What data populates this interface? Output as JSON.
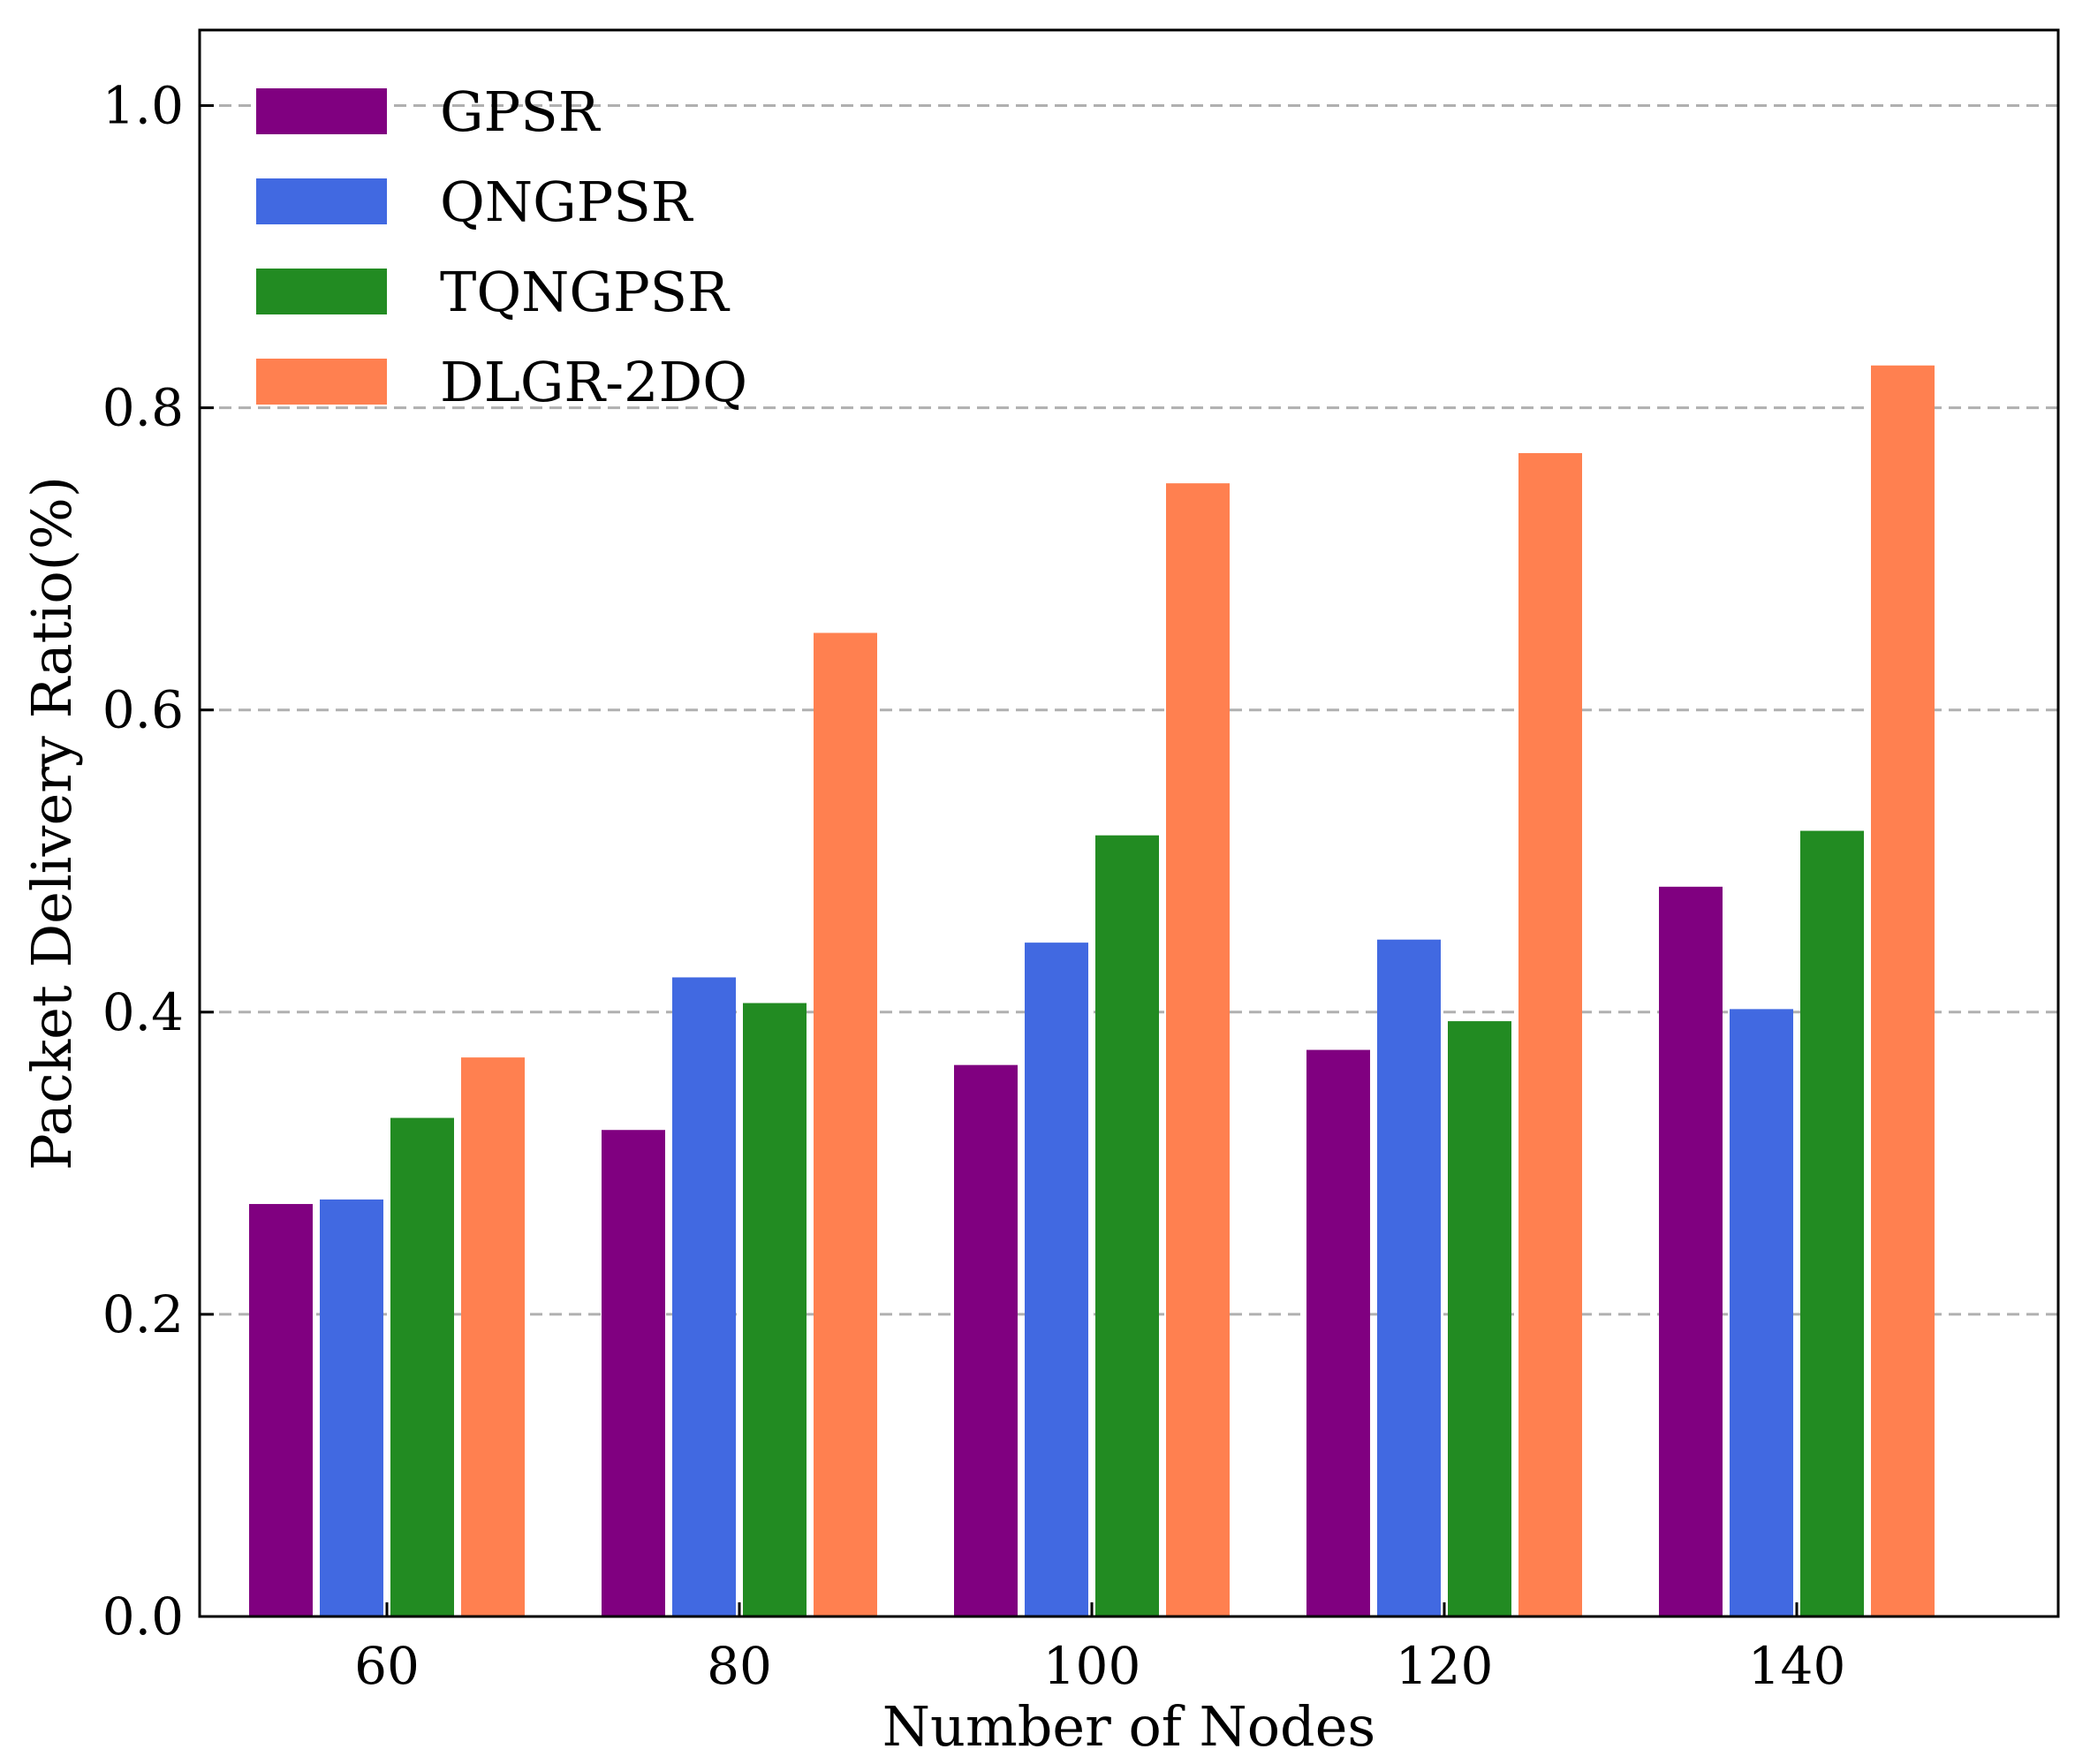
{
  "chart_data": {
    "type": "bar",
    "title": "",
    "xlabel": "Number of Nodes",
    "ylabel": "Packet Delivery Ratio(%)",
    "categories": [
      "60",
      "80",
      "100",
      "120",
      "140"
    ],
    "ylim": [
      0,
      1.05
    ],
    "yticks": [
      "0.0",
      "0.2",
      "0.4",
      "0.6",
      "0.8",
      "1.0"
    ],
    "grid": "y-dashed",
    "legend_position": "top-left",
    "series": [
      {
        "name": "GPSR",
        "color": "#800080",
        "values": [
          0.273,
          0.322,
          0.365,
          0.375,
          0.483
        ]
      },
      {
        "name": "QNGPSR",
        "color": "#4169e1",
        "values": [
          0.276,
          0.423,
          0.446,
          0.448,
          0.402
        ]
      },
      {
        "name": "TQNGPSR",
        "color": "#228b22",
        "values": [
          0.33,
          0.406,
          0.517,
          0.394,
          0.52
        ]
      },
      {
        "name": "DLGR-2DQ",
        "color": "#ff8050",
        "values": [
          0.37,
          0.651,
          0.75,
          0.77,
          0.828
        ]
      }
    ]
  }
}
